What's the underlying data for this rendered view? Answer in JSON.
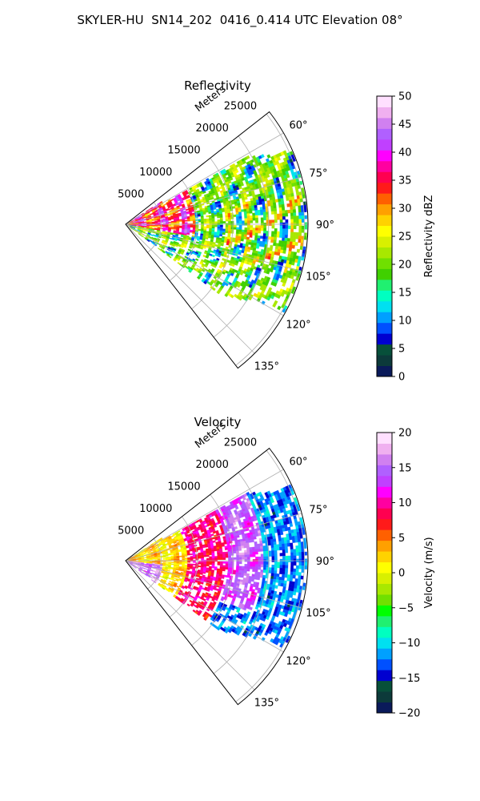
{
  "figure": {
    "title": "SKYLER-HU  SN14_202  0416_0.414 UTC Elevation 08°"
  },
  "chart_data": [
    {
      "type": "heatmap",
      "subtype": "radar-sector (polar)",
      "title": "Reflectivity",
      "radial_label": "Meters",
      "radial_ticks": [
        "5000",
        "10000",
        "15000",
        "20000",
        "25000"
      ],
      "radial_tick_values": [
        5000,
        10000,
        15000,
        20000,
        25000
      ],
      "rmax": 25500,
      "angle_ticks": [
        "60°",
        "75°",
        "90°",
        "105°",
        "120°",
        "135°"
      ],
      "angle_tick_values": [
        60,
        75,
        90,
        105,
        120,
        135
      ],
      "theta_range": [
        52,
        142
      ],
      "grid": true,
      "colorbar": {
        "label": "Reflectivity dBZ",
        "range": [
          0,
          50
        ],
        "ticks": [
          "0",
          "5",
          "10",
          "15",
          "20",
          "25",
          "30",
          "35",
          "40",
          "45",
          "50"
        ],
        "tick_values": [
          0,
          5,
          10,
          15,
          20,
          25,
          30,
          35,
          40,
          45,
          50
        ],
        "colors": [
          "#0a1a5a",
          "#0c3a3a",
          "#07503a",
          "#0000d0",
          "#0050ff",
          "#00a0ff",
          "#00e0f0",
          "#00ffc0",
          "#20f070",
          "#40d000",
          "#70e000",
          "#a8e800",
          "#d8f000",
          "#ffff00",
          "#ffd200",
          "#ffa000",
          "#ff6000",
          "#ff1a1a",
          "#ff0050",
          "#ff00a0",
          "#ff00ff",
          "#c040ff",
          "#b060ff",
          "#d080f0",
          "#f0b0f0",
          "#ffe0ff"
        ]
      },
      "field_summary": [
        {
          "range_m": [
            0,
            9000
          ],
          "theta_deg": [
            55,
            100
          ],
          "value_dbz": 38,
          "note": "red/magenta near-radar returns"
        },
        {
          "range_m": [
            5000,
            25000
          ],
          "theta_deg": [
            55,
            125
          ],
          "value_dbz": 20,
          "note": "widespread green echo"
        },
        {
          "range_m": [
            14000,
            25000
          ],
          "theta_deg": [
            80,
            105
          ],
          "value_dbz": 26,
          "note": "yellow embedded cells"
        },
        {
          "range_m": [
            12000,
            22000
          ],
          "theta_deg": [
            75,
            100
          ],
          "value_dbz": 12,
          "note": "cyan weaker pockets"
        }
      ]
    },
    {
      "type": "heatmap",
      "subtype": "radar-sector (polar)",
      "title": "Velocity",
      "radial_label": "Meters",
      "radial_ticks": [
        "5000",
        "10000",
        "15000",
        "20000",
        "25000"
      ],
      "radial_tick_values": [
        5000,
        10000,
        15000,
        20000,
        25000
      ],
      "rmax": 25500,
      "angle_ticks": [
        "60°",
        "75°",
        "90°",
        "105°",
        "120°",
        "135°"
      ],
      "angle_tick_values": [
        60,
        75,
        90,
        105,
        120,
        135
      ],
      "theta_range": [
        52,
        142
      ],
      "grid": true,
      "colorbar": {
        "label": "Velocity (m/s)",
        "range": [
          -20,
          20
        ],
        "ticks": [
          "−20",
          "−15",
          "−10",
          "−5",
          "0",
          "5",
          "10",
          "15",
          "20"
        ],
        "tick_values": [
          -20,
          -15,
          -10,
          -5,
          0,
          5,
          10,
          15,
          20
        ],
        "colors": [
          "#0a1a5a",
          "#0c3a3a",
          "#07503a",
          "#0000d0",
          "#0050ff",
          "#00a0ff",
          "#00e0f0",
          "#00ffc0",
          "#20f070",
          "#00ff00",
          "#70e000",
          "#a8e800",
          "#d8f000",
          "#ffff00",
          "#ffd200",
          "#ffa000",
          "#ff6000",
          "#ff1a1a",
          "#ff0050",
          "#ff00a0",
          "#ff00ff",
          "#c040ff",
          "#b060ff",
          "#d080f0",
          "#f0b0f0",
          "#ffe0ff"
        ]
      },
      "field_summary": [
        {
          "range_m": [
            0,
            9000
          ],
          "theta_deg": [
            55,
            125
          ],
          "value_ms": 2,
          "note": "yellow/orange near radar"
        },
        {
          "range_m": [
            9000,
            16000
          ],
          "theta_deg": [
            55,
            125
          ],
          "value_ms": 9,
          "note": "red band"
        },
        {
          "range_m": [
            14000,
            19000
          ],
          "theta_deg": [
            55,
            110
          ],
          "value_ms": 15,
          "note": "magenta/purple band"
        },
        {
          "range_m": [
            18000,
            25000
          ],
          "theta_deg": [
            60,
            115
          ],
          "value_ms": -12,
          "note": "cyan outbound region"
        }
      ]
    }
  ]
}
